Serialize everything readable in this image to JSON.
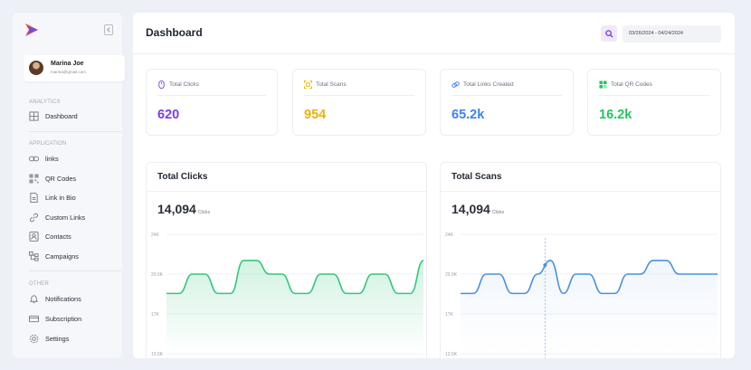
{
  "user": {
    "name": "Marina Joe",
    "email": "marina@gmail.com"
  },
  "sidebar": {
    "sections": [
      "ANALYTICS",
      "APPLICATION",
      "OTHER"
    ],
    "analytics": [
      {
        "label": "Dashboard"
      }
    ],
    "application": [
      {
        "label": "links"
      },
      {
        "label": "QR Codes"
      },
      {
        "label": "Link in Bio"
      },
      {
        "label": "Custom Links"
      },
      {
        "label": "Contacts"
      },
      {
        "label": "Campaigns"
      }
    ],
    "other": [
      {
        "label": "Notifications"
      },
      {
        "label": "Subscription"
      },
      {
        "label": "Settings"
      }
    ]
  },
  "header": {
    "title": "Dashboard",
    "date_range": "03/26/2024 - 04/24/2024"
  },
  "stats": [
    {
      "label": "Total Clicks",
      "value": "620",
      "color": "#7c3aed",
      "icon": "mouse-icon"
    },
    {
      "label": "Total Scans",
      "value": "954",
      "color": "#eab308",
      "icon": "scan-icon"
    },
    {
      "label": "Total Links Created",
      "value": "65.2k",
      "color": "#3b82f6",
      "icon": "link-icon"
    },
    {
      "label": "Total QR Codes",
      "value": "16.2k",
      "color": "#22c55e",
      "icon": "qr-icon"
    }
  ],
  "cards": {
    "clicks": {
      "title": "Total Clicks",
      "value": "14,094",
      "unit": "Clicks"
    },
    "scans": {
      "title": "Total Scans",
      "value": "14,094",
      "unit": "Clicks"
    }
  },
  "chart_data": [
    {
      "type": "area",
      "title": "Total Clicks",
      "color": "#34c77b",
      "yticks": [
        "24K",
        "20.5K",
        "17K",
        "13.5K"
      ],
      "ylim": [
        13500,
        24000
      ],
      "x": [
        0,
        1,
        2,
        3,
        4,
        5,
        6,
        7,
        8,
        9,
        10,
        11,
        12,
        13,
        14,
        15,
        16,
        17,
        18,
        19,
        20
      ],
      "values": [
        18800,
        18800,
        20500,
        20500,
        18800,
        18800,
        21700,
        21700,
        20500,
        20500,
        18800,
        18800,
        20500,
        20500,
        18800,
        18800,
        20500,
        20500,
        18800,
        18800,
        21700
      ]
    },
    {
      "type": "line",
      "title": "Total Scans",
      "color": "#4a90e2",
      "yticks": [
        "24K",
        "20.5K",
        "17K",
        "13.5K"
      ],
      "ylim": [
        13500,
        24000
      ],
      "x": [
        0,
        1,
        2,
        3,
        4,
        5,
        6,
        7,
        8,
        9,
        10,
        11,
        12,
        13,
        14,
        15,
        16,
        17,
        18,
        19,
        20
      ],
      "values": [
        18800,
        18800,
        20500,
        20500,
        18800,
        18800,
        20500,
        21700,
        18800,
        20500,
        20500,
        18800,
        18800,
        20500,
        20500,
        21700,
        21700,
        20500,
        20500,
        20500,
        20500
      ]
    }
  ]
}
